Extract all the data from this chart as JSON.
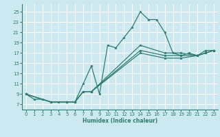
{
  "xlabel": "Humidex (Indice chaleur)",
  "bg_color": "#cce8f0",
  "grid_color": "#ffffff",
  "line_color": "#2e7d6e",
  "marker": "*",
  "xlim": [
    -0.5,
    23.5
  ],
  "ylim": [
    6.0,
    26.5
  ],
  "xticks": [
    0,
    1,
    2,
    3,
    4,
    5,
    6,
    7,
    8,
    9,
    10,
    11,
    12,
    13,
    14,
    15,
    16,
    17,
    18,
    19,
    20,
    21,
    22,
    23
  ],
  "yticks": [
    7,
    9,
    11,
    13,
    15,
    17,
    19,
    21,
    23,
    25
  ],
  "series": [
    {
      "x": [
        0,
        1,
        2,
        3,
        4,
        5,
        6,
        7,
        8,
        9,
        10,
        11,
        12,
        13,
        14,
        15,
        16,
        17,
        18,
        19,
        20,
        21,
        22,
        23
      ],
      "y": [
        9,
        8,
        8,
        7.5,
        7.5,
        7.5,
        7.5,
        11,
        14.5,
        9,
        18.5,
        18,
        20,
        22,
        25,
        23.5,
        23.5,
        21,
        17,
        16.5,
        17,
        16.5,
        17.5,
        17.5
      ]
    },
    {
      "x": [
        0,
        3,
        5,
        6,
        7,
        8,
        14,
        17,
        19,
        21,
        22,
        23
      ],
      "y": [
        9,
        7.5,
        7.5,
        7.5,
        9.5,
        9.5,
        17,
        16,
        16,
        16.5,
        17,
        17.5
      ]
    },
    {
      "x": [
        0,
        3,
        5,
        6,
        7,
        8,
        14,
        17,
        19,
        21,
        22,
        23
      ],
      "y": [
        9,
        7.5,
        7.5,
        7.5,
        9.5,
        9.5,
        17.5,
        16.5,
        16.5,
        16.5,
        17,
        17.5
      ]
    },
    {
      "x": [
        0,
        3,
        5,
        6,
        7,
        8,
        14,
        17,
        19,
        21,
        22,
        23
      ],
      "y": [
        9,
        7.5,
        7.5,
        7.5,
        9.5,
        9.5,
        18.5,
        17,
        17,
        16.5,
        17,
        17.5
      ]
    }
  ]
}
